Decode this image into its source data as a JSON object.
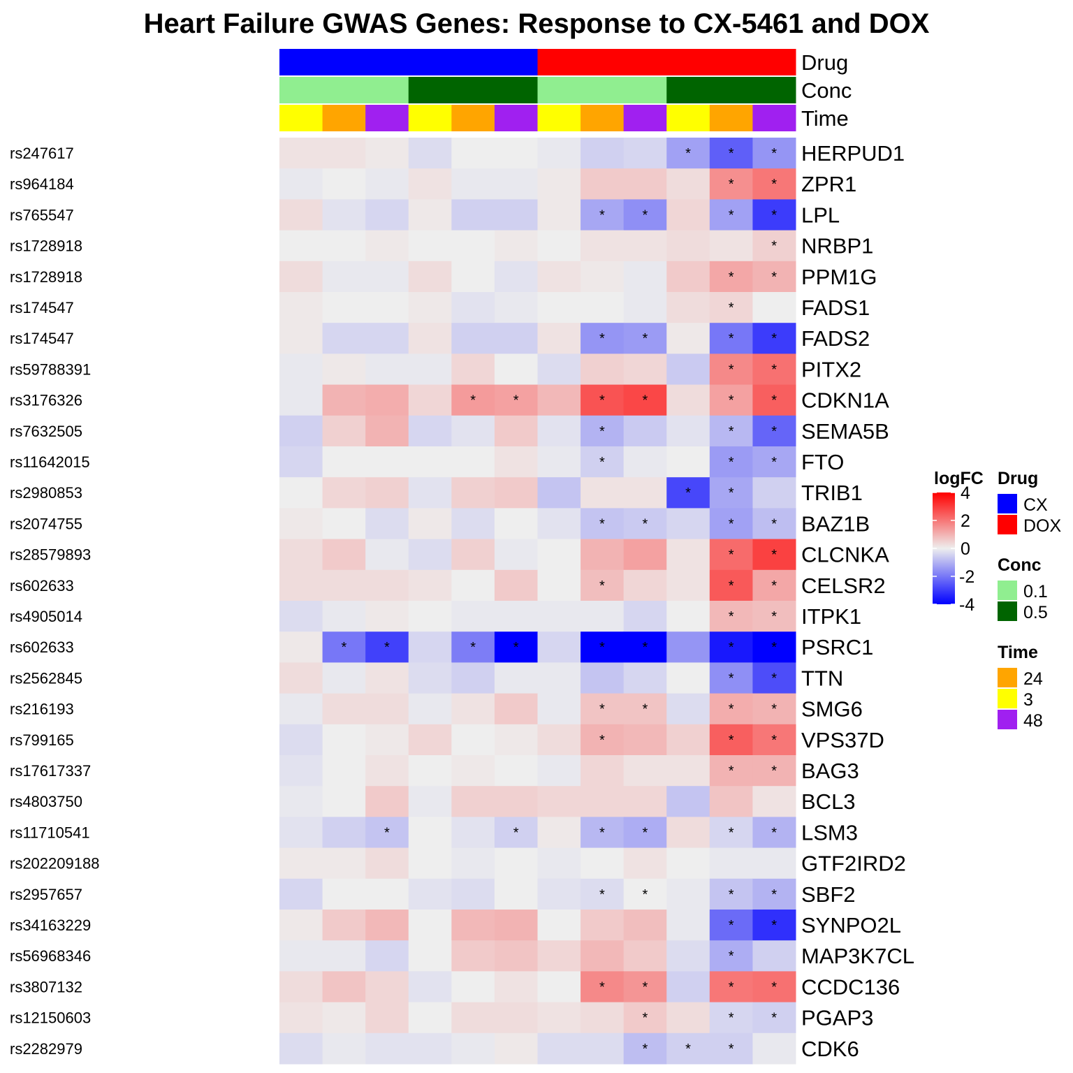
{
  "chart_data": {
    "type": "heatmap",
    "title": "Heart Failure GWAS Genes: Response to CX-5461 and DOX",
    "annotations": {
      "Drug": [
        "CX",
        "CX",
        "CX",
        "CX",
        "CX",
        "CX",
        "DOX",
        "DOX",
        "DOX",
        "DOX",
        "DOX",
        "DOX"
      ],
      "Conc": [
        "0.1",
        "0.1",
        "0.1",
        "0.5",
        "0.5",
        "0.5",
        "0.1",
        "0.1",
        "0.1",
        "0.5",
        "0.5",
        "0.5"
      ],
      "Time": [
        "3",
        "24",
        "48",
        "3",
        "24",
        "48",
        "3",
        "24",
        "48",
        "3",
        "24",
        "48"
      ]
    },
    "rows": [
      {
        "snp": "rs247617",
        "gene": "HERPUD1",
        "logfc": [
          0.2,
          0.2,
          0.1,
          -0.3,
          0.0,
          0.0,
          -0.1,
          -0.5,
          -0.4,
          -1.3,
          -2.4,
          -1.5
        ],
        "sig": [
          0,
          0,
          0,
          0,
          0,
          0,
          0,
          0,
          0,
          1,
          1,
          1
        ]
      },
      {
        "snp": "rs964184",
        "gene": "ZPR1",
        "logfc": [
          -0.1,
          0.0,
          -0.1,
          0.2,
          -0.1,
          -0.1,
          0.1,
          0.6,
          0.6,
          0.3,
          1.6,
          2.0
        ],
        "sig": [
          0,
          0,
          0,
          0,
          0,
          0,
          0,
          0,
          0,
          0,
          1,
          1
        ]
      },
      {
        "snp": "rs765547",
        "gene": "LPL",
        "logfc": [
          0.3,
          -0.2,
          -0.4,
          0.1,
          -0.5,
          -0.5,
          0.1,
          -1.2,
          -1.6,
          0.4,
          -1.3,
          -3.0
        ],
        "sig": [
          0,
          0,
          0,
          0,
          0,
          0,
          0,
          1,
          1,
          0,
          1,
          1
        ]
      },
      {
        "snp": "rs1728918",
        "gene": "NRBP1",
        "logfc": [
          0.0,
          0.0,
          0.1,
          0.0,
          0.0,
          0.1,
          0.0,
          0.2,
          0.2,
          0.3,
          0.2,
          0.5
        ],
        "sig": [
          0,
          0,
          0,
          0,
          0,
          0,
          0,
          0,
          0,
          0,
          0,
          1
        ]
      },
      {
        "snp": "rs1728918",
        "gene": "PPM1G",
        "logfc": [
          0.3,
          -0.1,
          -0.1,
          0.3,
          0.0,
          -0.2,
          0.2,
          0.1,
          -0.1,
          0.6,
          1.2,
          1.0
        ],
        "sig": [
          0,
          0,
          0,
          0,
          0,
          0,
          0,
          0,
          0,
          0,
          1,
          1
        ]
      },
      {
        "snp": "rs174547",
        "gene": "FADS1",
        "logfc": [
          0.1,
          0.0,
          0.0,
          0.1,
          -0.2,
          -0.1,
          0.0,
          0.0,
          -0.1,
          0.3,
          0.4,
          0.0
        ],
        "sig": [
          0,
          0,
          0,
          0,
          0,
          0,
          0,
          0,
          0,
          0,
          1,
          0
        ]
      },
      {
        "snp": "rs174547",
        "gene": "FADS2",
        "logfc": [
          0.1,
          -0.4,
          -0.4,
          0.2,
          -0.5,
          -0.5,
          0.2,
          -1.5,
          -1.4,
          0.1,
          -2.0,
          -3.0
        ],
        "sig": [
          0,
          0,
          0,
          0,
          0,
          0,
          0,
          1,
          1,
          0,
          1,
          1
        ]
      },
      {
        "snp": "rs59788391",
        "gene": "PITX2",
        "logfc": [
          -0.1,
          0.1,
          -0.1,
          -0.1,
          0.4,
          0.0,
          -0.3,
          0.5,
          0.4,
          -0.6,
          1.7,
          2.1
        ],
        "sig": [
          0,
          0,
          0,
          0,
          0,
          0,
          0,
          0,
          0,
          0,
          1,
          1
        ]
      },
      {
        "snp": "rs3176326",
        "gene": "CDKN1A",
        "logfc": [
          -0.1,
          1.0,
          1.1,
          0.4,
          1.4,
          1.3,
          0.9,
          2.6,
          2.8,
          0.3,
          1.3,
          2.4
        ],
        "sig": [
          0,
          0,
          0,
          0,
          1,
          1,
          0,
          1,
          1,
          0,
          1,
          1
        ]
      },
      {
        "snp": "rs7632505",
        "gene": "SEMA5B",
        "logfc": [
          -0.5,
          0.5,
          1.0,
          -0.4,
          -0.2,
          0.6,
          -0.2,
          -1.0,
          -0.6,
          -0.2,
          -0.9,
          -2.3
        ],
        "sig": [
          0,
          0,
          0,
          0,
          0,
          0,
          0,
          1,
          0,
          0,
          1,
          1
        ]
      },
      {
        "snp": "rs11642015",
        "gene": "FTO",
        "logfc": [
          -0.4,
          0.0,
          0.0,
          0.0,
          0.0,
          0.2,
          -0.1,
          -0.5,
          -0.1,
          0.0,
          -1.4,
          -1.2
        ],
        "sig": [
          0,
          0,
          0,
          0,
          0,
          0,
          0,
          1,
          0,
          0,
          1,
          1
        ]
      },
      {
        "snp": "rs2980853",
        "gene": "TRIB1",
        "logfc": [
          0.0,
          0.4,
          0.5,
          -0.2,
          0.5,
          0.6,
          -0.7,
          0.2,
          0.2,
          -2.8,
          -1.2,
          -0.5
        ],
        "sig": [
          0,
          0,
          0,
          0,
          0,
          0,
          0,
          0,
          0,
          1,
          1,
          0
        ]
      },
      {
        "snp": "rs2074755",
        "gene": "BAZ1B",
        "logfc": [
          0.1,
          0.0,
          -0.3,
          0.1,
          -0.3,
          0.0,
          -0.2,
          -0.7,
          -0.6,
          -0.4,
          -1.3,
          -0.8
        ],
        "sig": [
          0,
          0,
          0,
          0,
          0,
          0,
          0,
          1,
          1,
          0,
          1,
          1
        ]
      },
      {
        "snp": "rs28579893",
        "gene": "CLCNKA",
        "logfc": [
          0.3,
          0.6,
          -0.1,
          -0.3,
          0.5,
          -0.1,
          0.0,
          1.0,
          1.3,
          0.2,
          2.2,
          2.9
        ],
        "sig": [
          0,
          0,
          0,
          0,
          0,
          0,
          0,
          0,
          0,
          0,
          1,
          1
        ]
      },
      {
        "snp": "rs602633",
        "gene": "CELSR2",
        "logfc": [
          0.3,
          0.3,
          0.3,
          0.2,
          0.0,
          0.6,
          0.0,
          0.8,
          0.4,
          0.2,
          2.5,
          1.2
        ],
        "sig": [
          0,
          0,
          0,
          0,
          0,
          0,
          0,
          1,
          0,
          0,
          1,
          1
        ]
      },
      {
        "snp": "rs4905014",
        "gene": "ITPK1",
        "logfc": [
          -0.3,
          -0.1,
          0.1,
          0.0,
          -0.1,
          -0.1,
          -0.1,
          -0.1,
          -0.4,
          0.0,
          0.9,
          0.8
        ],
        "sig": [
          0,
          0,
          0,
          0,
          0,
          0,
          0,
          0,
          0,
          0,
          1,
          1
        ]
      },
      {
        "snp": "rs602633",
        "gene": "PSRC1",
        "logfc": [
          0.1,
          -2.0,
          -2.9,
          -0.4,
          -1.9,
          -4.0,
          -0.4,
          -4.0,
          -4.0,
          -1.5,
          -3.6,
          -4.0
        ],
        "sig": [
          0,
          1,
          1,
          0,
          1,
          1,
          0,
          1,
          1,
          0,
          1,
          1
        ]
      },
      {
        "snp": "rs2562845",
        "gene": "TTN",
        "logfc": [
          0.3,
          -0.1,
          0.2,
          -0.3,
          -0.5,
          -0.1,
          -0.1,
          -0.7,
          -0.4,
          0.0,
          -1.6,
          -2.7
        ],
        "sig": [
          0,
          0,
          0,
          0,
          0,
          0,
          0,
          0,
          0,
          0,
          1,
          1
        ]
      },
      {
        "snp": "rs216193",
        "gene": "SMG6",
        "logfc": [
          -0.1,
          0.3,
          0.3,
          -0.1,
          0.2,
          0.6,
          -0.1,
          0.7,
          0.7,
          -0.3,
          1.1,
          1.0
        ],
        "sig": [
          0,
          0,
          0,
          0,
          0,
          0,
          0,
          1,
          1,
          0,
          1,
          1
        ]
      },
      {
        "snp": "rs799165",
        "gene": "VPS37D",
        "logfc": [
          -0.3,
          0.0,
          0.1,
          0.4,
          0.0,
          0.1,
          0.3,
          1.0,
          0.9,
          0.5,
          2.4,
          2.0
        ],
        "sig": [
          0,
          0,
          0,
          0,
          0,
          0,
          0,
          1,
          0,
          0,
          1,
          1
        ]
      },
      {
        "snp": "rs17617337",
        "gene": "BAG3",
        "logfc": [
          -0.2,
          0.0,
          0.2,
          0.0,
          0.1,
          0.0,
          -0.1,
          0.4,
          0.2,
          0.2,
          1.0,
          1.0
        ],
        "sig": [
          0,
          0,
          0,
          0,
          0,
          0,
          0,
          0,
          0,
          0,
          1,
          1
        ]
      },
      {
        "snp": "rs4803750",
        "gene": "BCL3",
        "logfc": [
          -0.1,
          0.0,
          0.6,
          -0.1,
          0.5,
          0.5,
          0.4,
          0.4,
          0.4,
          -0.7,
          0.7,
          0.2
        ],
        "sig": [
          0,
          0,
          0,
          0,
          0,
          0,
          0,
          0,
          0,
          0,
          0,
          0
        ]
      },
      {
        "snp": "rs11710541",
        "gene": "LSM3",
        "logfc": [
          -0.2,
          -0.5,
          -0.7,
          0.0,
          -0.2,
          -0.5,
          0.1,
          -0.9,
          -1.1,
          0.3,
          -0.4,
          -1.0
        ],
        "sig": [
          0,
          0,
          1,
          0,
          0,
          1,
          0,
          1,
          1,
          0,
          1,
          1
        ]
      },
      {
        "snp": "rs202209188",
        "gene": "GTF2IRD2",
        "logfc": [
          0.1,
          0.1,
          0.3,
          0.0,
          -0.1,
          0.0,
          -0.1,
          0.0,
          0.2,
          0.0,
          -0.1,
          -0.1
        ],
        "sig": [
          0,
          0,
          0,
          0,
          0,
          0,
          0,
          0,
          0,
          0,
          0,
          0
        ]
      },
      {
        "snp": "rs2957657",
        "gene": "SBF2",
        "logfc": [
          -0.4,
          0.0,
          0.0,
          -0.2,
          -0.3,
          0.0,
          -0.2,
          -0.3,
          0.0,
          -0.1,
          -0.7,
          -1.0
        ],
        "sig": [
          0,
          0,
          0,
          0,
          0,
          0,
          0,
          1,
          1,
          0,
          1,
          1
        ]
      },
      {
        "snp": "rs34163229",
        "gene": "SYNPO2L",
        "logfc": [
          0.1,
          0.6,
          0.9,
          0.0,
          0.9,
          1.0,
          0.0,
          0.6,
          0.8,
          -0.1,
          -2.2,
          -3.2
        ],
        "sig": [
          0,
          0,
          0,
          0,
          0,
          0,
          0,
          0,
          0,
          0,
          1,
          1
        ]
      },
      {
        "snp": "rs56968346",
        "gene": "MAP3K7CL",
        "logfc": [
          -0.1,
          -0.1,
          -0.4,
          0.0,
          0.6,
          0.7,
          0.4,
          0.9,
          0.6,
          -0.3,
          -1.1,
          -0.5
        ],
        "sig": [
          0,
          0,
          0,
          0,
          0,
          0,
          0,
          0,
          0,
          0,
          1,
          0
        ]
      },
      {
        "snp": "rs3807132",
        "gene": "CCDC136",
        "logfc": [
          0.3,
          0.7,
          0.4,
          -0.2,
          0.0,
          0.2,
          0.0,
          1.7,
          1.5,
          -0.5,
          2.0,
          2.1
        ],
        "sig": [
          0,
          0,
          0,
          0,
          0,
          0,
          0,
          1,
          1,
          0,
          1,
          1
        ]
      },
      {
        "snp": "rs12150603",
        "gene": "PGAP3",
        "logfc": [
          0.2,
          0.1,
          0.4,
          0.0,
          0.3,
          0.3,
          0.2,
          0.3,
          0.6,
          0.3,
          -0.4,
          -0.5
        ],
        "sig": [
          0,
          0,
          0,
          0,
          0,
          0,
          0,
          0,
          1,
          0,
          1,
          1
        ]
      },
      {
        "snp": "rs2282979",
        "gene": "CDK6",
        "logfc": [
          -0.3,
          -0.1,
          -0.2,
          -0.2,
          -0.1,
          0.1,
          -0.3,
          -0.3,
          -0.8,
          -0.5,
          -0.5,
          -0.1
        ],
        "sig": [
          0,
          0,
          0,
          0,
          0,
          0,
          0,
          0,
          1,
          1,
          1,
          0
        ]
      }
    ],
    "annotation_labels": [
      "Drug",
      "Conc",
      "Time"
    ],
    "significance_marker": "*",
    "color_scale": {
      "min": -4,
      "max": 4,
      "low": "#0000ff",
      "mid": "#eeeeee",
      "high": "#ff0000"
    },
    "legend": {
      "logfc": {
        "title": "logFC",
        "ticks": [
          "4",
          "2",
          "0",
          "-2",
          "-4"
        ],
        "tick_values": [
          4,
          2,
          0,
          -2,
          -4
        ]
      },
      "drug": {
        "title": "Drug",
        "items": [
          {
            "label": "CX",
            "color": "#0000ff"
          },
          {
            "label": "DOX",
            "color": "#ff0000"
          }
        ]
      },
      "conc": {
        "title": "Conc",
        "items": [
          {
            "label": "0.1",
            "color": "#90ee90"
          },
          {
            "label": "0.5",
            "color": "#006400"
          }
        ]
      },
      "time": {
        "title": "Time",
        "items": [
          {
            "label": "24",
            "color": "#ffa500"
          },
          {
            "label": "3",
            "color": "#ffff00"
          },
          {
            "label": "48",
            "color": "#a020f0"
          }
        ]
      }
    }
  }
}
